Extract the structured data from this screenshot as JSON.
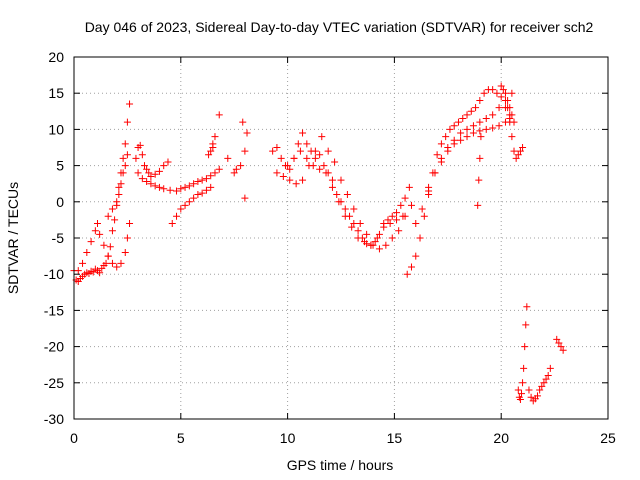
{
  "chart_data": {
    "type": "scatter",
    "title": "Day 046 of 2023, Sidereal Day-to-day VTEC variation (SDTVAR) for receiver sch2",
    "xlabel": "GPS time / hours",
    "ylabel": "SDTVAR / TECUs",
    "xlim": [
      0,
      25
    ],
    "ylim": [
      -30,
      20
    ],
    "x_ticks": [
      0,
      5,
      10,
      15,
      20,
      25
    ],
    "y_ticks": [
      -30,
      -25,
      -20,
      -15,
      -10,
      -5,
      0,
      5,
      10,
      15,
      20
    ],
    "grid": true,
    "marker": "+",
    "series_color": "#ff0000",
    "series": [
      {
        "name": "SDTVAR",
        "x": [
          0.0,
          0.1,
          0.2,
          0.3,
          0.4,
          0.5,
          0.6,
          0.7,
          0.8,
          0.9,
          1.0,
          1.1,
          1.2,
          1.3,
          1.4,
          1.5,
          1.6,
          1.7,
          1.8,
          1.9,
          2.0,
          2.1,
          2.2,
          2.3,
          2.4,
          2.5,
          2.6,
          0.2,
          0.4,
          0.6,
          0.8,
          1.0,
          1.1,
          1.2,
          1.4,
          1.6,
          1.8,
          2.0,
          2.2,
          2.4,
          2.5,
          2.6,
          1.6,
          1.8,
          2.0,
          2.1,
          2.2,
          2.3,
          2.4,
          2.5,
          2.9,
          3.0,
          3.1,
          3.2,
          3.3,
          3.4,
          3.5,
          3.6,
          3.8,
          4.0,
          4.2,
          4.4,
          3.0,
          3.2,
          3.4,
          3.6,
          3.8,
          4.0,
          4.2,
          4.5,
          4.8,
          5.0,
          5.2,
          5.4,
          5.6,
          5.8,
          6.0,
          6.2,
          6.4,
          6.6,
          6.8,
          4.6,
          4.8,
          5.0,
          5.2,
          5.4,
          5.6,
          5.8,
          6.0,
          6.2,
          6.4,
          6.5,
          6.6,
          6.3,
          6.4,
          6.5,
          6.8,
          7.2,
          7.5,
          7.6,
          7.8,
          8.0,
          8.1,
          7.9,
          8.0,
          9.3,
          9.5,
          9.7,
          9.9,
          10.1,
          10.3,
          10.5,
          10.7,
          10.9,
          11.1,
          11.3,
          11.5,
          11.7,
          11.9,
          12.1,
          12.3,
          12.5,
          12.7,
          12.9,
          13.1,
          13.3,
          13.5,
          13.7,
          13.9,
          14.1,
          14.3,
          14.5,
          14.7,
          14.9,
          15.1,
          15.3,
          15.5,
          15.7,
          9.5,
          9.8,
          10.1,
          10.4,
          10.7,
          11.0,
          11.3,
          11.6,
          11.9,
          12.2,
          12.5,
          12.8,
          13.1,
          13.4,
          13.7,
          14.0,
          14.3,
          14.6,
          14.9,
          15.2,
          15.5,
          15.8,
          10.0,
          10.3,
          10.6,
          10.9,
          11.2,
          11.5,
          11.8,
          12.1,
          12.4,
          12.7,
          13.0,
          13.3,
          13.6,
          13.9,
          14.2,
          14.5,
          14.8,
          15.1,
          15.4,
          15.6,
          15.8,
          16.0,
          16.2,
          16.4,
          16.6,
          16.8,
          17.0,
          17.2,
          17.4,
          17.6,
          17.8,
          18.0,
          18.2,
          18.4,
          18.6,
          18.8,
          19.0,
          19.2,
          19.4,
          19.6,
          19.8,
          20.0,
          20.2,
          20.4,
          16.0,
          16.3,
          16.6,
          16.9,
          17.2,
          17.5,
          17.8,
          18.1,
          18.4,
          18.7,
          19.0,
          19.3,
          19.6,
          19.9,
          20.2,
          20.5,
          16.6,
          16.9,
          17.2,
          17.5,
          17.8,
          18.1,
          18.4,
          18.7,
          19.0,
          19.3,
          19.6,
          19.9,
          20.2,
          20.4,
          18.9,
          18.95,
          19.0,
          19.05,
          20.3,
          20.4,
          20.5,
          20.6,
          20.7,
          20.8,
          20.9,
          21.0,
          20.0,
          20.1,
          20.2,
          20.3,
          20.4,
          20.5,
          20.6,
          20.8,
          20.85,
          20.9,
          20.95,
          21.0,
          21.05,
          21.1,
          21.15,
          21.2,
          21.3,
          21.4,
          21.5,
          21.6,
          21.7,
          21.8,
          21.9,
          22.0,
          22.1,
          22.2,
          22.3,
          22.6,
          22.7,
          22.8,
          22.9
        ],
        "y": [
          -9.5,
          -10.8,
          -11,
          -10.6,
          -10.3,
          -10,
          -9.8,
          -9.9,
          -9.6,
          -9.7,
          -9.3,
          -9.5,
          -9.8,
          -9.2,
          -8.8,
          -8.5,
          -7.5,
          -6.2,
          -4,
          -2.5,
          -0.5,
          2,
          4,
          6,
          8,
          11,
          13.5,
          -9.5,
          -8.5,
          -7,
          -5.5,
          -4,
          -3,
          -4.5,
          -6,
          -7.5,
          -8.5,
          -9,
          -8.5,
          -7,
          -5,
          -3,
          -2,
          -1,
          0,
          1,
          2.5,
          4,
          5,
          6.5,
          6,
          7.5,
          7.8,
          6.5,
          5,
          4.5,
          4,
          3.5,
          3.8,
          4.2,
          5,
          5.5,
          4,
          3.2,
          2.8,
          2.5,
          2.2,
          2,
          1.8,
          1.6,
          1.5,
          1.8,
          2,
          2.2,
          2.5,
          2.8,
          3,
          3.2,
          3.6,
          4,
          4.5,
          -3,
          -2,
          -1,
          -0.5,
          0,
          0.5,
          1,
          1.2,
          1.6,
          2,
          8,
          9,
          6.5,
          7,
          7.5,
          12,
          6,
          4,
          4.5,
          5,
          7,
          9.5,
          11,
          0.5,
          7,
          7.5,
          6,
          5,
          4.5,
          6,
          8,
          9.5,
          8,
          7,
          6,
          6.5,
          5,
          4,
          3,
          1,
          0,
          -1,
          -2,
          -3,
          -4,
          -5,
          -5.8,
          -6,
          -5.5,
          -4.5,
          -3,
          -2.5,
          -2,
          -1.5,
          -0.5,
          0.5,
          2,
          4,
          3.5,
          3,
          2.5,
          3,
          5,
          7,
          9,
          7,
          5.5,
          3,
          1,
          -1,
          -3,
          -4.5,
          -6,
          -6.5,
          -6,
          -5,
          -4,
          -2,
          -0.5,
          5,
          6,
          7,
          6,
          5,
          4.5,
          4,
          2,
          0,
          -2,
          -3.5,
          -5,
          -5.5,
          -6,
          -5,
          -3.5,
          -3,
          -2.5,
          -2,
          -10,
          -9,
          -7.5,
          -5,
          -2,
          1,
          4,
          6.5,
          8,
          9,
          10,
          10.5,
          11,
          11.5,
          12,
          12.5,
          13,
          14,
          15,
          15.5,
          15.5,
          15,
          14.5,
          13,
          12,
          -3,
          -1,
          1.5,
          4,
          6,
          7.5,
          8.5,
          9.5,
          10,
          10.5,
          11,
          11.5,
          12,
          13,
          14,
          15,
          2,
          4,
          5.5,
          7,
          8,
          8.5,
          9,
          9.5,
          9.8,
          10,
          10.2,
          10.5,
          11,
          11.5,
          -0.5,
          3,
          6,
          9,
          13,
          11,
          9,
          7,
          6,
          6.5,
          7,
          7.5,
          16,
          15.5,
          15,
          14,
          13,
          12,
          11,
          -26,
          -27,
          -27.3,
          -26.5,
          -25,
          -23,
          -20,
          -17,
          -14.5,
          -26,
          -27,
          -27.5,
          -27.2,
          -26.8,
          -26,
          -25.5,
          -25,
          -24.5,
          -24,
          -23,
          -19,
          -19.5,
          -20,
          -20.5
        ]
      }
    ]
  }
}
